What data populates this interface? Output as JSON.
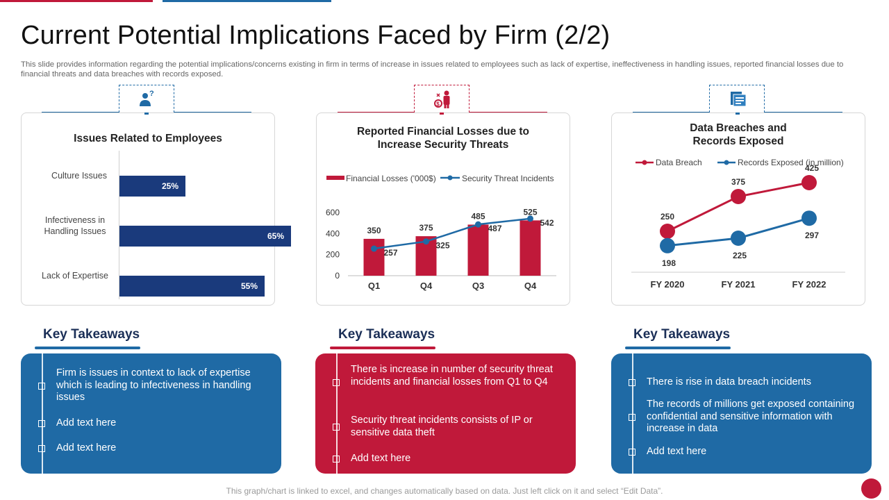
{
  "slide": {
    "title": "Current Potential Implications Faced by Firm (2/2)",
    "subtitle": "This slide provides information regarding the potential implications/concerns existing in firm in terms of increase in  issues related to employees such as lack of expertise, ineffectiveness in handling issues, reported financial losses due to financial threats and data breaches with records exposed.",
    "footer": "This graph/chart is linked to excel, and changes automatically based on data. Just left click on it and select “Edit Data”."
  },
  "colors": {
    "red": "#c0193a",
    "blue": "#1f6aa5",
    "navy": "#1a3a7c",
    "dark_title": "#1b2f57"
  },
  "icons": {
    "panel1": "employee-question-icon",
    "panel2": "financial-threat-icon",
    "panel3": "data-records-icon"
  },
  "chart_data": [
    {
      "type": "bar",
      "orientation": "horizontal",
      "title": "Issues  Related to Employees",
      "categories": [
        "Culture Issues",
        "Infectiveness in Handling Issues",
        "Lack of Expertise"
      ],
      "values": [
        25,
        65,
        55
      ],
      "value_labels": [
        "25%",
        "65%",
        "55%"
      ],
      "xlim": [
        0,
        75
      ],
      "grid": false
    },
    {
      "type": "bar",
      "title": "Reported Financial Losses  due to Increase Security Threats",
      "categories": [
        "Q1",
        "Q4",
        "Q3",
        "Q4"
      ],
      "ylim": [
        0,
        600
      ],
      "yticks": [
        0,
        200,
        400,
        600
      ],
      "legend_position": "top",
      "series": [
        {
          "name": "Financial Losses  ('000$)",
          "kind": "bar",
          "values": [
            350,
            375,
            485,
            525
          ]
        },
        {
          "name": "Security Threat Incidents",
          "kind": "line",
          "values": [
            257,
            325,
            487,
            542
          ]
        }
      ]
    },
    {
      "type": "line",
      "title": "Data Breaches and Records Exposed",
      "categories": [
        "FY 2020",
        "FY 2021",
        "FY 2022"
      ],
      "legend_position": "top",
      "series": [
        {
          "name": "Data Breach",
          "values": [
            250,
            375,
            425
          ]
        },
        {
          "name": "Records Exposed (in million)",
          "values": [
            198,
            225,
            297
          ]
        }
      ]
    }
  ],
  "takeaways": {
    "heading": "Key Takeaways",
    "panel1": [
      "Firm is issues in context to lack of expertise which is leading to infectiveness in handling issues",
      "Add text here",
      "Add text here"
    ],
    "panel2": [
      "There is increase in number of security threat incidents and financial losses from Q1 to Q4",
      "Security threat incidents consists of IP or sensitive data theft",
      "Add text here"
    ],
    "panel3": [
      "There is rise in data breach incidents",
      "The records of millions get exposed containing confidential and sensitive information with increase in data",
      "Add text here"
    ]
  }
}
